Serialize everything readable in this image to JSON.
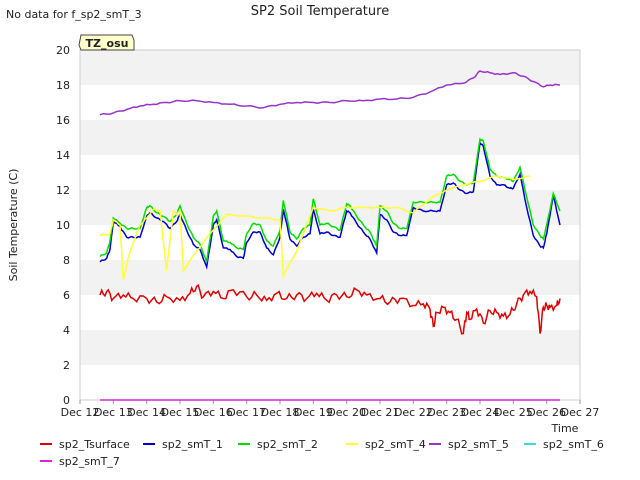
{
  "chart_data": {
    "type": "line",
    "title": "SP2 Soil Temperature",
    "nodata_note": "No data for f_sp2_smT_3",
    "station_tag": "TZ_osu",
    "xlabel": "Time",
    "ylabel": "Soil Temperature (C)",
    "xlim": [
      12,
      27
    ],
    "ylim": [
      0,
      20
    ],
    "x_ticks": [
      12,
      13,
      14,
      15,
      16,
      17,
      18,
      19,
      20,
      21,
      22,
      23,
      24,
      25,
      26,
      27
    ],
    "x_tick_labels": [
      "Dec 12",
      "Dec 13",
      "Dec 14",
      "Dec 15",
      "Dec 16",
      "Dec 17",
      "Dec 18",
      "Dec 19",
      "Dec 20",
      "Dec 21",
      "Dec 22",
      "Dec 23",
      "Dec 24",
      "Dec 25",
      "Dec 26",
      "Dec 27"
    ],
    "y_ticks": [
      0,
      2,
      4,
      6,
      8,
      10,
      12,
      14,
      16,
      18,
      20
    ],
    "y_tick_labels": [
      "0",
      "2",
      "4",
      "6",
      "8",
      "10",
      "12",
      "14",
      "16",
      "18",
      "20"
    ],
    "grid": "horizontal bands",
    "legend_position": "bottom",
    "series": [
      {
        "name": "sp2_Tsurface",
        "color": "#dd0000",
        "x": [
          12.6,
          12.8,
          13.0,
          13.3,
          13.6,
          14.0,
          14.3,
          14.6,
          15.0,
          15.3,
          15.5,
          15.7,
          16.0,
          16.3,
          16.6,
          17.0,
          17.3,
          17.6,
          17.9,
          18.2,
          18.5,
          18.8,
          19.1,
          19.4,
          19.7,
          20.0,
          20.3,
          20.6,
          21.0,
          21.3,
          21.6,
          22.0,
          22.3,
          22.5,
          22.6,
          22.7,
          22.9,
          23.1,
          23.3,
          23.5,
          23.6,
          23.7,
          23.9,
          24.1,
          24.3,
          24.5,
          24.7,
          24.9,
          25.1,
          25.3,
          25.5,
          25.7,
          25.8,
          25.9,
          26.0,
          26.1,
          26.3,
          26.4
        ],
        "y": [
          6.0,
          6.2,
          5.8,
          6.0,
          5.8,
          5.8,
          5.6,
          5.9,
          5.7,
          6.1,
          6.5,
          5.9,
          6.2,
          5.8,
          6.3,
          5.9,
          6.0,
          5.7,
          6.1,
          5.8,
          6.0,
          5.8,
          6.1,
          5.7,
          6.0,
          5.9,
          6.3,
          6.0,
          5.8,
          5.6,
          5.8,
          5.4,
          5.5,
          5.2,
          4.2,
          5.0,
          5.3,
          5.0,
          4.6,
          3.8,
          5.0,
          4.6,
          5.2,
          4.4,
          5.1,
          5.0,
          4.8,
          4.9,
          5.5,
          6.0,
          6.2,
          5.9,
          3.8,
          5.3,
          5.4,
          5.3,
          5.4,
          5.8
        ]
      },
      {
        "name": "sp2_smT_1",
        "color": "#0000cc",
        "x": [
          12.6,
          12.8,
          12.9,
          13.0,
          13.2,
          13.4,
          13.6,
          13.8,
          14.0,
          14.1,
          14.3,
          14.5,
          14.7,
          14.9,
          15.0,
          15.2,
          15.4,
          15.6,
          15.8,
          16.0,
          16.1,
          16.3,
          16.5,
          16.7,
          16.9,
          17.0,
          17.2,
          17.4,
          17.6,
          17.8,
          18.0,
          18.1,
          18.3,
          18.5,
          18.7,
          18.9,
          19.0,
          19.2,
          19.4,
          19.6,
          19.8,
          20.0,
          20.1,
          20.3,
          20.5,
          20.7,
          20.9,
          21.0,
          21.2,
          21.4,
          21.6,
          21.8,
          22.0,
          22.3,
          22.6,
          22.8,
          23.0,
          23.2,
          23.4,
          23.6,
          23.8,
          24.0,
          24.1,
          24.3,
          24.5,
          24.7,
          24.9,
          25.0,
          25.2,
          25.4,
          25.6,
          25.8,
          25.9,
          26.0,
          26.2,
          26.4
        ],
        "y": [
          7.9,
          8.1,
          8.6,
          10.2,
          9.9,
          9.3,
          9.3,
          9.3,
          10.5,
          10.7,
          10.4,
          10.2,
          9.8,
          10.2,
          10.6,
          9.7,
          8.9,
          8.6,
          7.6,
          10.0,
          10.3,
          8.7,
          8.6,
          8.2,
          8.1,
          9.0,
          9.6,
          9.6,
          8.7,
          8.3,
          9.3,
          10.9,
          9.2,
          8.8,
          9.3,
          9.5,
          10.9,
          9.5,
          9.6,
          9.4,
          9.3,
          10.8,
          10.7,
          10.1,
          9.6,
          9.2,
          8.4,
          10.6,
          10.3,
          9.6,
          9.4,
          9.4,
          11.0,
          10.8,
          10.8,
          10.8,
          12.3,
          12.4,
          12.0,
          11.8,
          11.9,
          14.7,
          14.5,
          12.8,
          12.3,
          12.3,
          12.1,
          12.1,
          12.9,
          11.0,
          9.4,
          8.8,
          8.7,
          9.5,
          11.7,
          10.0
        ]
      },
      {
        "name": "sp2_smT_2",
        "color": "#00dd00",
        "x": [
          12.6,
          12.8,
          12.9,
          13.0,
          13.2,
          13.4,
          13.6,
          13.8,
          14.0,
          14.1,
          14.3,
          14.5,
          14.7,
          14.9,
          15.0,
          15.2,
          15.4,
          15.6,
          15.8,
          16.0,
          16.1,
          16.3,
          16.5,
          16.7,
          16.9,
          17.0,
          17.2,
          17.4,
          17.6,
          17.8,
          18.0,
          18.1,
          18.3,
          18.5,
          18.7,
          18.9,
          19.0,
          19.2,
          19.4,
          19.6,
          19.8,
          20.0,
          20.1,
          20.3,
          20.5,
          20.7,
          20.9,
          21.0,
          21.2,
          21.4,
          21.6,
          21.8,
          22.0,
          22.3,
          22.6,
          22.8,
          23.0,
          23.2,
          23.4,
          23.6,
          23.8,
          24.0,
          24.1,
          24.3,
          24.5,
          24.7,
          24.9,
          25.0,
          25.2,
          25.4,
          25.6,
          25.8,
          25.9,
          26.0,
          26.2,
          26.4
        ],
        "y": [
          8.2,
          8.4,
          9.1,
          10.4,
          10.1,
          9.8,
          9.8,
          9.8,
          11.0,
          11.1,
          10.7,
          10.5,
          10.2,
          10.6,
          11.1,
          10.1,
          9.3,
          8.9,
          7.9,
          10.5,
          10.8,
          9.1,
          9.0,
          8.7,
          8.6,
          9.5,
          10.1,
          10.0,
          9.1,
          8.8,
          9.7,
          11.4,
          9.6,
          9.2,
          9.8,
          10.0,
          11.5,
          10.0,
          10.1,
          9.9,
          9.7,
          11.2,
          11.1,
          10.5,
          10.0,
          9.6,
          8.8,
          11.1,
          10.8,
          10.1,
          9.8,
          9.8,
          11.3,
          11.3,
          11.3,
          11.3,
          12.8,
          12.9,
          12.5,
          12.3,
          12.4,
          14.9,
          14.8,
          13.2,
          12.8,
          12.7,
          12.6,
          12.5,
          13.3,
          11.6,
          10.0,
          9.4,
          9.2,
          10.0,
          11.8,
          10.8
        ]
      },
      {
        "name": "sp2_smT_4",
        "color": "#ffff33",
        "x": [
          12.6,
          12.9,
          13.0,
          13.2,
          13.3,
          13.5,
          13.8,
          14.0,
          14.2,
          14.4,
          14.6,
          14.8,
          14.9,
          15.0,
          15.1,
          15.5,
          15.9,
          16.4,
          17.0,
          17.5,
          18.0,
          18.1,
          18.5,
          19.0,
          19.5,
          20.0,
          20.5,
          21.0,
          21.5,
          22.0,
          22.5,
          23.0,
          23.5,
          24.0,
          24.5,
          25.0,
          25.5
        ],
        "y": [
          9.4,
          9.5,
          10.3,
          10.0,
          6.9,
          8.5,
          10.0,
          10.4,
          10.9,
          10.8,
          7.4,
          10.8,
          10.6,
          10.8,
          7.4,
          8.5,
          9.5,
          10.6,
          10.5,
          10.4,
          10.3,
          7.1,
          8.5,
          11.0,
          10.8,
          11.0,
          11.0,
          11.0,
          11.0,
          10.7,
          11.5,
          12.0,
          12.3,
          12.5,
          12.8,
          12.6,
          12.8
        ]
      },
      {
        "name": "sp2_smT_5",
        "color": "#9933cc",
        "x": [
          12.6,
          13.0,
          13.4,
          13.8,
          14.2,
          14.6,
          15.0,
          15.5,
          16.0,
          16.5,
          17.0,
          17.5,
          18.0,
          18.5,
          19.0,
          19.5,
          20.0,
          20.5,
          21.0,
          21.5,
          22.0,
          22.5,
          23.0,
          23.5,
          23.8,
          24.0,
          24.3,
          24.6,
          25.0,
          25.3,
          25.6,
          25.9,
          26.1,
          26.4
        ],
        "y": [
          16.3,
          16.4,
          16.6,
          16.8,
          16.9,
          17.0,
          17.1,
          17.1,
          17.0,
          16.9,
          16.8,
          16.7,
          16.9,
          17.0,
          17.0,
          17.0,
          17.1,
          17.1,
          17.2,
          17.2,
          17.3,
          17.6,
          18.0,
          18.1,
          18.4,
          18.8,
          18.7,
          18.6,
          18.7,
          18.5,
          18.2,
          17.9,
          18.0,
          18.0
        ]
      },
      {
        "name": "sp2_smT_6",
        "color": "#33dddd",
        "x": [],
        "y": []
      },
      {
        "name": "sp2_smT_7",
        "color": "#dd22dd",
        "x": [
          12.6,
          26.4
        ],
        "y": [
          0.0,
          0.0
        ]
      }
    ]
  }
}
